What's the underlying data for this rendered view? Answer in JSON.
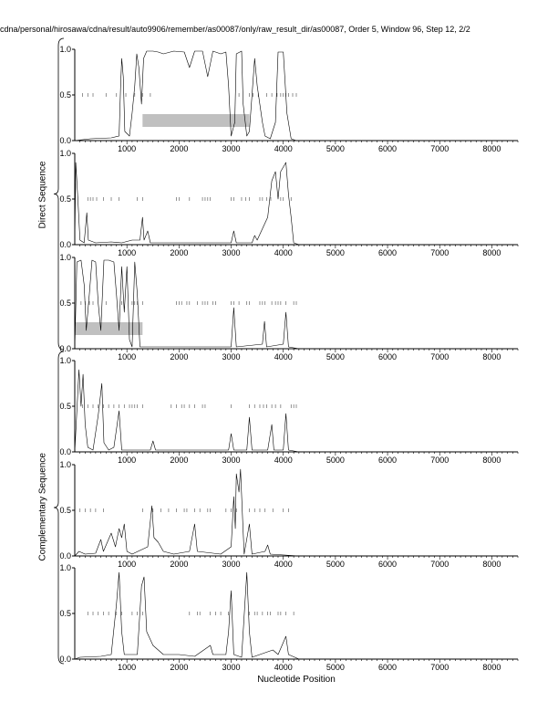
{
  "header": {
    "title": "cdna/personal/hirosawa/cdna/result/auto9906/remember/as00087/only/raw_result_dir/as00087, Order 5, Window 96, Step 12, 2/2"
  },
  "groups": [
    {
      "label": "Direct Sequence"
    },
    {
      "label": "Complementary Sequence"
    }
  ],
  "chart_data": {
    "type": "line",
    "xlabel": "Nucleotide Position",
    "xlim": [
      0,
      8500
    ],
    "ylim": [
      0,
      1.0
    ],
    "x_ticks": [
      1000,
      2000,
      3000,
      4000,
      5000,
      6000,
      7000,
      8000
    ],
    "y_ticks": [
      "0.0",
      "0.5",
      "1.0"
    ],
    "panels": [
      {
        "group": "Direct Sequence",
        "frame": 1,
        "series": [
          [
            0,
            0
          ],
          [
            150,
            0.01
          ],
          [
            300,
            0.02
          ],
          [
            700,
            0.03
          ],
          [
            850,
            0.05
          ],
          [
            880,
            0.6
          ],
          [
            900,
            0.9
          ],
          [
            930,
            0.7
          ],
          [
            960,
            0.1
          ],
          [
            1050,
            0.05
          ],
          [
            1100,
            0.3
          ],
          [
            1150,
            0.6
          ],
          [
            1190,
            0.95
          ],
          [
            1230,
            0.8
          ],
          [
            1280,
            0.4
          ],
          [
            1320,
            0.9
          ],
          [
            1380,
            0.98
          ],
          [
            1500,
            0.98
          ],
          [
            1600,
            0.97
          ],
          [
            1700,
            0.95
          ],
          [
            1900,
            0.98
          ],
          [
            2100,
            0.97
          ],
          [
            2200,
            0.8
          ],
          [
            2300,
            0.98
          ],
          [
            2450,
            0.98
          ],
          [
            2550,
            0.7
          ],
          [
            2650,
            0.98
          ],
          [
            2800,
            0.95
          ],
          [
            2900,
            0.97
          ],
          [
            2950,
            0.6
          ],
          [
            3000,
            0.05
          ],
          [
            3070,
            0.2
          ],
          [
            3100,
            0.95
          ],
          [
            3200,
            0.98
          ],
          [
            3230,
            0.4
          ],
          [
            3300,
            0.05
          ],
          [
            3350,
            0.1
          ],
          [
            3400,
            0.5
          ],
          [
            3450,
            0.9
          ],
          [
            3500,
            0.6
          ],
          [
            3600,
            0.2
          ],
          [
            3650,
            0.05
          ],
          [
            3750,
            0.02
          ],
          [
            3850,
            0.2
          ],
          [
            3900,
            0.97
          ],
          [
            4000,
            0.97
          ],
          [
            4070,
            0.3
          ],
          [
            4150,
            0.02
          ],
          [
            4250,
            0.0
          ]
        ],
        "ticks": [
          150,
          250,
          350,
          600,
          800,
          980,
          1150,
          1300,
          1450,
          3150,
          3350,
          3420,
          3520,
          3680,
          3780,
          3880,
          3950,
          4000,
          4050,
          4100,
          4180,
          4250
        ],
        "box": {
          "x_start": 1300,
          "x_end": 3350,
          "y": 0.22
        }
      },
      {
        "group": "Direct Sequence",
        "frame": 2,
        "series": [
          [
            0,
            0.0
          ],
          [
            20,
            0.9
          ],
          [
            60,
            0.5
          ],
          [
            100,
            0.05
          ],
          [
            180,
            0.02
          ],
          [
            230,
            0.35
          ],
          [
            260,
            0.05
          ],
          [
            400,
            0.02
          ],
          [
            700,
            0.03
          ],
          [
            900,
            0.02
          ],
          [
            1100,
            0.05
          ],
          [
            1250,
            0.05
          ],
          [
            1300,
            0.3
          ],
          [
            1330,
            0.05
          ],
          [
            1400,
            0.15
          ],
          [
            1450,
            0.02
          ],
          [
            1800,
            0.02
          ],
          [
            2200,
            0.02
          ],
          [
            2700,
            0.02
          ],
          [
            3000,
            0.02
          ],
          [
            3050,
            0.15
          ],
          [
            3100,
            0.02
          ],
          [
            3400,
            0.02
          ],
          [
            3450,
            0.1
          ],
          [
            3500,
            0.05
          ],
          [
            3700,
            0.3
          ],
          [
            3780,
            0.7
          ],
          [
            3850,
            0.8
          ],
          [
            3900,
            0.5
          ],
          [
            3950,
            0.8
          ],
          [
            4050,
            0.9
          ],
          [
            4100,
            0.55
          ],
          [
            4150,
            0.3
          ],
          [
            4200,
            0.02
          ],
          [
            4300,
            0.0
          ]
        ],
        "ticks": [
          250,
          300,
          350,
          420,
          550,
          700,
          850,
          1200,
          1300,
          1950,
          2000,
          2200,
          2450,
          2500,
          2550,
          2600,
          3000,
          3050,
          3200,
          3280,
          3350,
          3550,
          3600,
          3680,
          3760,
          3950,
          4000,
          4150
        ],
        "box": null
      },
      {
        "group": "Direct Sequence",
        "frame": 3,
        "series": [
          [
            0,
            0.0
          ],
          [
            40,
            0.95
          ],
          [
            120,
            0.97
          ],
          [
            180,
            0.7
          ],
          [
            220,
            0.2
          ],
          [
            280,
            0.6
          ],
          [
            330,
            0.97
          ],
          [
            400,
            0.95
          ],
          [
            450,
            0.5
          ],
          [
            500,
            0.2
          ],
          [
            560,
            0.97
          ],
          [
            650,
            0.97
          ],
          [
            750,
            0.95
          ],
          [
            800,
            0.6
          ],
          [
            850,
            0.2
          ],
          [
            900,
            0.9
          ],
          [
            950,
            0.4
          ],
          [
            1000,
            0.9
          ],
          [
            1050,
            0.1
          ],
          [
            1100,
            0.02
          ],
          [
            1150,
            0.95
          ],
          [
            1200,
            0.6
          ],
          [
            1250,
            0.02
          ],
          [
            1400,
            0.02
          ],
          [
            1800,
            0.02
          ],
          [
            2500,
            0.02
          ],
          [
            3000,
            0.02
          ],
          [
            3050,
            0.45
          ],
          [
            3100,
            0.02
          ],
          [
            3600,
            0.05
          ],
          [
            3640,
            0.3
          ],
          [
            3680,
            0.02
          ],
          [
            4000,
            0.05
          ],
          [
            4050,
            0.4
          ],
          [
            4100,
            0.02
          ],
          [
            4300,
            0.0
          ]
        ],
        "ticks": [
          120,
          200,
          280,
          350,
          600,
          900,
          1100,
          1150,
          1200,
          1300,
          1950,
          2000,
          2050,
          2150,
          2200,
          2350,
          2450,
          2500,
          2550,
          2650,
          2700,
          3000,
          3050,
          3150,
          3300,
          3350,
          3550,
          3600,
          3650,
          3780,
          3850,
          3900,
          3950,
          4050,
          4200,
          4250
        ],
        "box": {
          "x_start": 0,
          "x_end": 1300,
          "y": 0.22
        }
      },
      {
        "group": "Complementary Sequence",
        "frame": 1,
        "series": [
          [
            0,
            0.0
          ],
          [
            80,
            0.9
          ],
          [
            120,
            0.5
          ],
          [
            160,
            0.85
          ],
          [
            200,
            0.3
          ],
          [
            250,
            0.05
          ],
          [
            350,
            0.02
          ],
          [
            450,
            0.4
          ],
          [
            520,
            0.75
          ],
          [
            560,
            0.1
          ],
          [
            650,
            0.02
          ],
          [
            750,
            0.05
          ],
          [
            850,
            0.45
          ],
          [
            900,
            0.02
          ],
          [
            1000,
            0.02
          ],
          [
            1250,
            0.02
          ],
          [
            1450,
            0.02
          ],
          [
            1500,
            0.12
          ],
          [
            1550,
            0.02
          ],
          [
            2000,
            0.02
          ],
          [
            2800,
            0.02
          ],
          [
            2950,
            0.02
          ],
          [
            3000,
            0.2
          ],
          [
            3050,
            0.02
          ],
          [
            3300,
            0.02
          ],
          [
            3350,
            0.38
          ],
          [
            3400,
            0.02
          ],
          [
            3700,
            0.02
          ],
          [
            3780,
            0.3
          ],
          [
            3820,
            0.02
          ],
          [
            4000,
            0.02
          ],
          [
            4050,
            0.42
          ],
          [
            4100,
            0.02
          ],
          [
            4300,
            0.0
          ]
        ],
        "ticks": [
          150,
          250,
          350,
          450,
          550,
          650,
          750,
          850,
          950,
          1050,
          1100,
          1150,
          1200,
          1300,
          1850,
          1950,
          2050,
          2100,
          2200,
          2300,
          2450,
          2500,
          3000,
          3350,
          3450,
          3550,
          3620,
          3680,
          3780,
          3850,
          3950,
          4150,
          4200,
          4250
        ],
        "box": null
      },
      {
        "group": "Complementary Sequence",
        "frame": 2,
        "series": [
          [
            0,
            0.0
          ],
          [
            80,
            0.05
          ],
          [
            200,
            0.02
          ],
          [
            400,
            0.03
          ],
          [
            500,
            0.18
          ],
          [
            550,
            0.05
          ],
          [
            700,
            0.25
          ],
          [
            780,
            0.1
          ],
          [
            850,
            0.3
          ],
          [
            900,
            0.2
          ],
          [
            950,
            0.35
          ],
          [
            1000,
            0.05
          ],
          [
            1100,
            0.02
          ],
          [
            1400,
            0.1
          ],
          [
            1480,
            0.55
          ],
          [
            1520,
            0.2
          ],
          [
            1600,
            0.15
          ],
          [
            1700,
            0.05
          ],
          [
            1900,
            0.02
          ],
          [
            2200,
            0.05
          ],
          [
            2300,
            0.35
          ],
          [
            2350,
            0.05
          ],
          [
            2800,
            0.02
          ],
          [
            3000,
            0.1
          ],
          [
            3050,
            0.65
          ],
          [
            3080,
            0.3
          ],
          [
            3100,
            0.9
          ],
          [
            3150,
            0.7
          ],
          [
            3180,
            0.95
          ],
          [
            3220,
            0.4
          ],
          [
            3250,
            0.02
          ],
          [
            3350,
            0.35
          ],
          [
            3400,
            0.02
          ],
          [
            3650,
            0.05
          ],
          [
            3700,
            0.12
          ],
          [
            3750,
            0.02
          ],
          [
            4300,
            0.0
          ]
        ],
        "ticks": [
          100,
          200,
          300,
          400,
          550,
          1300,
          1500,
          1650,
          1800,
          1950,
          2100,
          2150,
          2300,
          2400,
          2550,
          2600,
          2900,
          3000,
          3100,
          3350,
          3450,
          3550,
          3650,
          3800,
          4000,
          4100
        ],
        "box": null
      },
      {
        "group": "Complementary Sequence",
        "frame": 3,
        "series": [
          [
            0,
            0.0
          ],
          [
            100,
            0.02
          ],
          [
            500,
            0.03
          ],
          [
            700,
            0.05
          ],
          [
            800,
            0.6
          ],
          [
            850,
            0.95
          ],
          [
            900,
            0.3
          ],
          [
            950,
            0.05
          ],
          [
            1200,
            0.05
          ],
          [
            1280,
            0.8
          ],
          [
            1330,
            0.9
          ],
          [
            1380,
            0.3
          ],
          [
            1500,
            0.15
          ],
          [
            1700,
            0.05
          ],
          [
            2000,
            0.05
          ],
          [
            2300,
            0.03
          ],
          [
            2600,
            0.15
          ],
          [
            2650,
            0.05
          ],
          [
            2900,
            0.05
          ],
          [
            2950,
            0.3
          ],
          [
            3000,
            0.75
          ],
          [
            3050,
            0.05
          ],
          [
            3200,
            0.02
          ],
          [
            3300,
            0.95
          ],
          [
            3350,
            0.3
          ],
          [
            3400,
            0.02
          ],
          [
            3800,
            0.1
          ],
          [
            3900,
            0.05
          ],
          [
            4050,
            0.25
          ],
          [
            4100,
            0.05
          ],
          [
            4300,
            0.0
          ]
        ],
        "ticks": [
          250,
          350,
          450,
          550,
          650,
          800,
          900,
          1100,
          1200,
          1300,
          2200,
          2350,
          2400,
          2600,
          2700,
          2800,
          2950,
          3350,
          3450,
          3500,
          3600,
          3700,
          3750,
          3900,
          3950,
          4050,
          4200
        ],
        "box": null
      }
    ]
  }
}
